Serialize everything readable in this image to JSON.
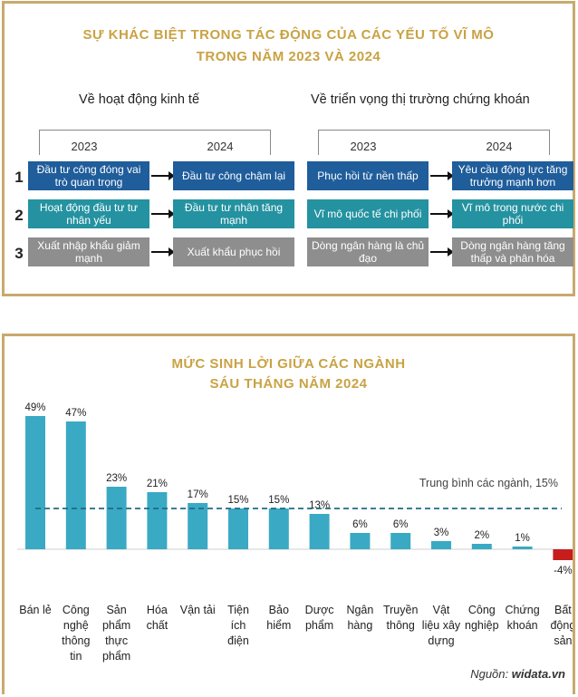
{
  "panel1": {
    "title_line1": "SỰ KHÁC BIỆT TRONG TÁC ĐỘNG CỦA CÁC YẾU TỐ VĨ MÔ",
    "title_line2": "TRONG NĂM 2023 VÀ 2024",
    "left_heading": "Về hoạt động kinh tế",
    "right_heading": "Về triển vọng thị trường chứng khoán",
    "year_a": "2023",
    "year_b": "2024",
    "row_numbers": [
      "1",
      "2",
      "3"
    ],
    "left_rows": [
      {
        "from": "Đầu tư công đóng vai trò quan trọng",
        "to": "Đầu tư công chậm lại",
        "color": "#1f5d9b"
      },
      {
        "from": "Hoạt động đầu tư tư nhân yếu",
        "to": "Đầu tư tư nhân tăng mạnh",
        "color": "#2492a0"
      },
      {
        "from": "Xuất nhập khẩu giảm mạnh",
        "to": "Xuất khẩu phục hồi",
        "color": "#8e8e8e"
      }
    ],
    "right_rows": [
      {
        "from": "Phục hồi từ nền thấp",
        "to": "Yêu cầu động lực tăng trưởng mạnh hơn",
        "color": "#1f5d9b"
      },
      {
        "from": "Vĩ mô quốc tế chi phối",
        "to": "Vĩ mô trong nước chi phối",
        "color": "#2492a0"
      },
      {
        "from": "Dòng ngân hàng là chủ đạo",
        "to": "Dòng ngân hàng tăng thấp và phân hóa",
        "color": "#8e8e8e"
      }
    ]
  },
  "chart_data": {
    "type": "bar",
    "title": "MỨC SINH LỜI GIỮA CÁC NGÀNH SÁU THÁNG NĂM 2024",
    "title_line1": "MỨC SINH LỜI GIỮA CÁC NGÀNH",
    "title_line2": "SÁU THÁNG NĂM 2024",
    "categories": [
      [
        "Bán lẻ"
      ],
      [
        "Công",
        "nghệ",
        "thông",
        "tin"
      ],
      [
        "Sản",
        "phẩm",
        "thực",
        "phẩm"
      ],
      [
        "Hóa",
        "chất"
      ],
      [
        "Vận tải"
      ],
      [
        "Tiện",
        "ích",
        "điện"
      ],
      [
        "Bảo",
        "hiểm"
      ],
      [
        "Dược",
        "phẩm"
      ],
      [
        "Ngân",
        "hàng"
      ],
      [
        "Truyền",
        "thông"
      ],
      [
        "Vật",
        "liệu xây",
        "dựng"
      ],
      [
        "Công",
        "nghiệp"
      ],
      [
        "Chứng",
        "khoán"
      ],
      [
        "Bất",
        "động",
        "sản"
      ]
    ],
    "values": [
      49,
      47,
      23,
      21,
      17,
      15,
      15,
      13,
      6,
      6,
      3,
      2,
      1,
      -4
    ],
    "value_labels": [
      "49%",
      "47%",
      "23%",
      "21%",
      "17%",
      "15%",
      "15%",
      "13%",
      "6%",
      "6%",
      "3%",
      "2%",
      "1%",
      "-4%"
    ],
    "average": 15,
    "average_label": "Trung bình các ngành, 15%",
    "colors": {
      "positive": "#3aa9c4",
      "negative": "#c81d1d",
      "average_line": "#1f6b86"
    }
  },
  "source": {
    "prefix": "Nguồn: ",
    "name": "widata.vn"
  }
}
